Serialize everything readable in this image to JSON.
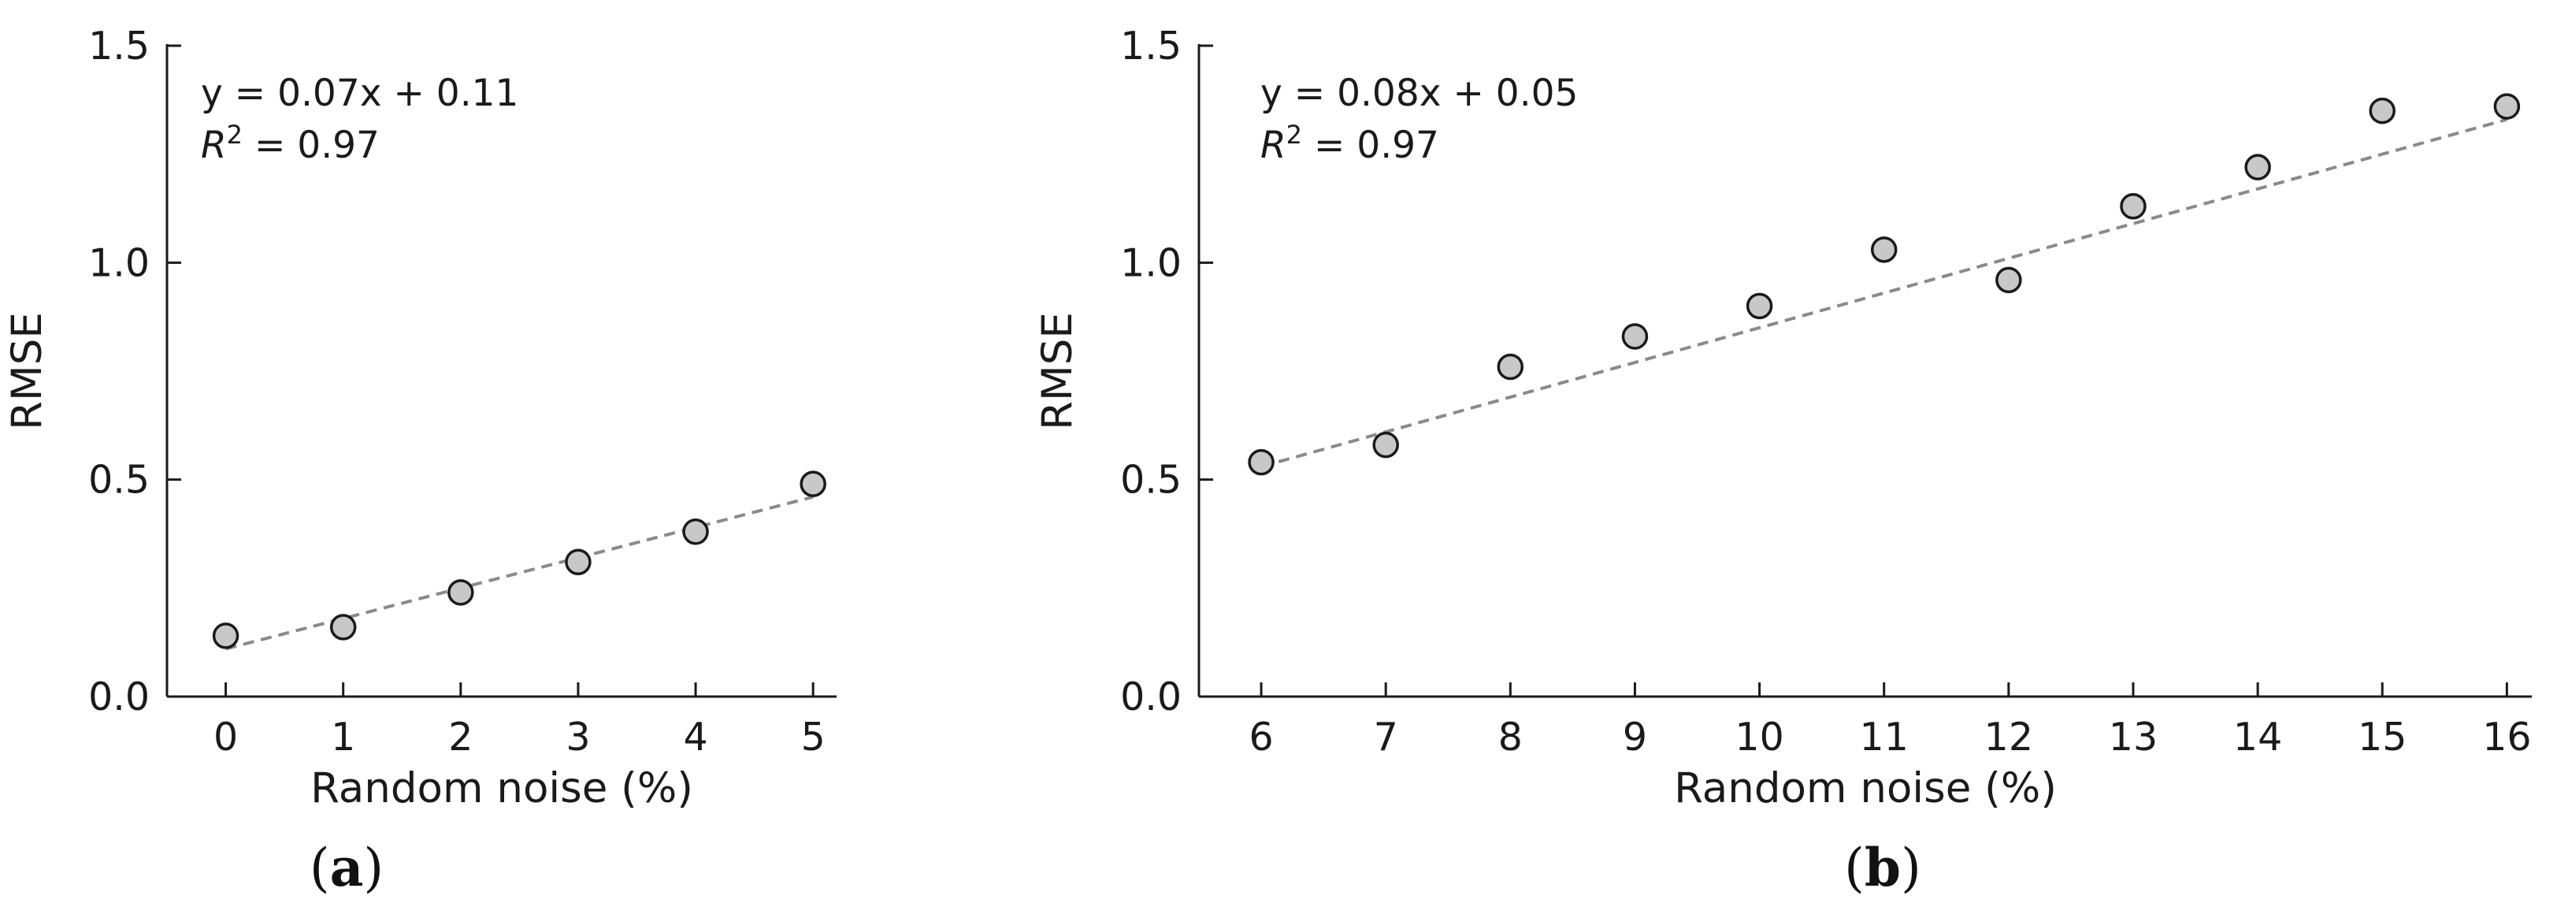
{
  "chart_data": [
    {
      "panel": "(a)",
      "panel_letter": "a",
      "type": "scatter",
      "xlabel": "Random noise (%)",
      "ylabel": "RMSE",
      "xlim": [
        -0.5,
        5.2
      ],
      "ylim": [
        0,
        1.5
      ],
      "x_ticks": [
        0,
        1,
        2,
        3,
        4,
        5
      ],
      "y_ticks": [
        0.0,
        0.5,
        1.0,
        1.5
      ],
      "y_tick_labels": [
        "0.0",
        "0.5",
        "1.0",
        "1.5"
      ],
      "grid": false,
      "points": [
        {
          "x": 0,
          "y": 0.14
        },
        {
          "x": 1,
          "y": 0.16
        },
        {
          "x": 2,
          "y": 0.24
        },
        {
          "x": 3,
          "y": 0.31
        },
        {
          "x": 4,
          "y": 0.38
        },
        {
          "x": 5,
          "y": 0.49
        }
      ],
      "fit": {
        "slope": 0.07,
        "intercept": 0.11,
        "x_range": [
          0,
          5
        ]
      },
      "annotation": {
        "equation": "y = 0.07x + 0.11",
        "r2_label": "R",
        "r2_sup": "2",
        "r2_value": " = 0.97"
      }
    },
    {
      "panel": "(b)",
      "panel_letter": "b",
      "type": "scatter",
      "xlabel": "Random noise (%)",
      "ylabel": "RMSE",
      "xlim": [
        5.5,
        16.2
      ],
      "ylim": [
        0,
        1.5
      ],
      "x_ticks": [
        6,
        7,
        8,
        9,
        10,
        11,
        12,
        13,
        14,
        15,
        16
      ],
      "y_ticks": [
        0.0,
        0.5,
        1.0,
        1.5
      ],
      "y_tick_labels": [
        "0.0",
        "0.5",
        "1.0",
        "1.5"
      ],
      "grid": false,
      "points": [
        {
          "x": 6,
          "y": 0.54
        },
        {
          "x": 7,
          "y": 0.58
        },
        {
          "x": 8,
          "y": 0.76
        },
        {
          "x": 9,
          "y": 0.83
        },
        {
          "x": 10,
          "y": 0.9
        },
        {
          "x": 11,
          "y": 1.03
        },
        {
          "x": 12,
          "y": 0.96
        },
        {
          "x": 13,
          "y": 1.13
        },
        {
          "x": 14,
          "y": 1.22
        },
        {
          "x": 15,
          "y": 1.35
        },
        {
          "x": 16,
          "y": 1.36
        }
      ],
      "fit": {
        "slope": 0.08,
        "intercept": 0.05,
        "x_range": [
          6,
          16
        ]
      },
      "annotation": {
        "equation": "y = 0.08x + 0.05",
        "r2_label": "R",
        "r2_sup": "2",
        "r2_value": " = 0.97"
      }
    }
  ],
  "colors": {
    "marker_fill": "#c8c8c8",
    "marker_stroke": "#1a1a1a",
    "fit_line": "#8a8a8a",
    "axis": "#1a1a1a"
  }
}
